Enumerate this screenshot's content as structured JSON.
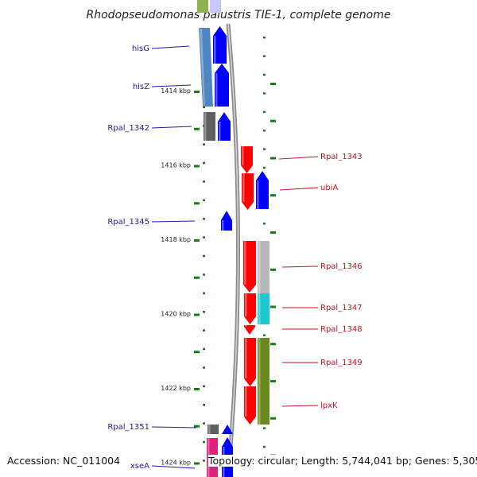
{
  "title": "Rhodopseudomonas palustris TIE-1, complete genome",
  "accession": "Accession: NC_011004",
  "topology": "Topology: circular; Length: 5,744,041 bp; Genes: 5,305",
  "colors": {
    "forward_gene": "#0000ff",
    "reverse_gene": "#ff0000",
    "backbone": "#8c8c8c",
    "tick": "#1a7a1a",
    "left_label": "#1a1aa8",
    "right_label": "#c0141c",
    "cog_steelblue": "#4f86c0",
    "cog_darkgray": "#5f5f5f",
    "cog_lightgray": "#b8b8b8",
    "cog_cyan": "#1fc8cc",
    "cog_olive": "#6b8a1e",
    "cog_pink": "#e0207a",
    "cog_green_top": "#8fb050"
  },
  "kbp_labels": [
    {
      "label": "1414 kbp",
      "kb": 1414
    },
    {
      "label": "1416 kbp",
      "kb": 1416
    },
    {
      "label": "1418 kbp",
      "kb": 1418
    },
    {
      "label": "1420 kbp",
      "kb": 1420
    },
    {
      "label": "1422 kbp",
      "kb": 1422
    },
    {
      "label": "1424 kbp",
      "kb": 1424
    }
  ],
  "genes_left": [
    {
      "name": "hisG",
      "icon": "up-arrow"
    },
    {
      "name": "hisZ",
      "icon": "up-arrow"
    },
    {
      "name": "Rpal_1342",
      "icon": "up-arrow"
    },
    {
      "name": "Rpal_1345",
      "icon": "up-arrow"
    },
    {
      "name": "Rpal_1351",
      "icon": "up-arrow"
    },
    {
      "name": "xseA",
      "icon": "up-arrow"
    }
  ],
  "genes_right": [
    {
      "name": "Rpal_1343",
      "icon": "down-arrow"
    },
    {
      "name": "ubiA",
      "icon": "down-arrow"
    },
    {
      "name": "Rpal_1346",
      "icon": "down-arrow"
    },
    {
      "name": "Rpal_1347",
      "icon": "down-arrow"
    },
    {
      "name": "Rpal_1348",
      "icon": "down-arrow"
    },
    {
      "name": "Rpal_1349",
      "icon": "down-arrow"
    },
    {
      "name": "lpxK",
      "icon": "down-arrow"
    }
  ]
}
